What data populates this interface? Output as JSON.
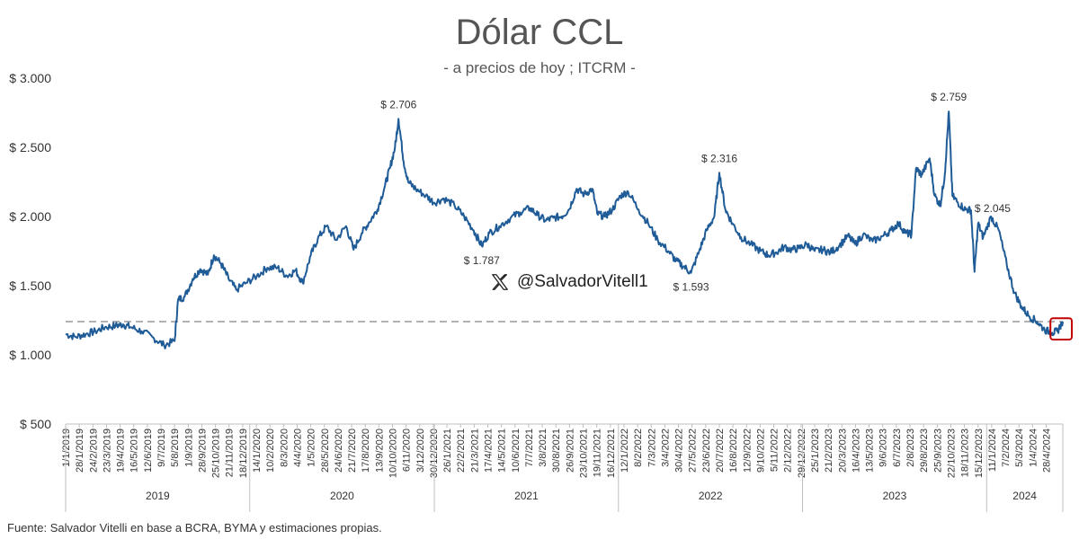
{
  "title": "Dólar CCL",
  "subtitle": "- a precios de hoy ; ITCRM -",
  "source": "Fuente: Salvador Vitelli en base a BCRA, BYMA y estimaciones propias.",
  "watermark": "@SalvadorVitell1",
  "colors": {
    "line": "#1f5b96",
    "reference": "#999999",
    "highlight": "#c00000",
    "grid": "#d0d0d0"
  },
  "chart_data": {
    "type": "line",
    "title": "Dólar CCL",
    "subtitle": "- a precios de hoy ; ITCRM -",
    "ylim": [
      500,
      3000
    ],
    "yticks": [
      500,
      1000,
      1500,
      2000,
      2500,
      3000
    ],
    "ytick_labels": [
      "$ 500",
      "$ 1.000",
      "$ 1.500",
      "$ 2.000",
      "$ 2.500",
      "$ 3.000"
    ],
    "reference_line": 1240,
    "x_start": "2019-01-01",
    "x_end": "2024-05-31",
    "years": [
      {
        "label": "2019",
        "start": "2019-01-01",
        "end": "2019-12-31"
      },
      {
        "label": "2020",
        "start": "2020-01-01",
        "end": "2020-12-31"
      },
      {
        "label": "2021",
        "start": "2021-01-01",
        "end": "2021-12-31"
      },
      {
        "label": "2022",
        "start": "2022-01-01",
        "end": "2022-12-31"
      },
      {
        "label": "2023",
        "start": "2023-01-01",
        "end": "2023-12-31"
      },
      {
        "label": "2024",
        "start": "2024-01-01",
        "end": "2024-05-31"
      }
    ],
    "x_tick_labels": [
      "1/1/2019",
      "28/1/2019",
      "24/2/2019",
      "23/3/2019",
      "19/4/2019",
      "16/5/2019",
      "12/6/2019",
      "9/7/2019",
      "5/8/2019",
      "1/9/2019",
      "28/9/2019",
      "25/10/2019",
      "21/11/2019",
      "18/12/2019",
      "14/1/2020",
      "10/2/2020",
      "8/3/2020",
      "4/4/2020",
      "1/5/2020",
      "28/5/2020",
      "24/6/2020",
      "21/7/2020",
      "17/8/2020",
      "13/9/2020",
      "10/10/2020",
      "6/11/2020",
      "3/12/2020",
      "30/12/2020",
      "26/1/2021",
      "22/2/2021",
      "21/3/2021",
      "17/4/2021",
      "14/5/2021",
      "10/6/2021",
      "7/7/2021",
      "3/8/2021",
      "30/8/2021",
      "26/9/2021",
      "23/10/2021",
      "19/11/2021",
      "16/12/2021",
      "12/1/2022",
      "8/2/2022",
      "7/3/2022",
      "3/4/2022",
      "30/4/2022",
      "27/5/2022",
      "23/6/2022",
      "20/7/2022",
      "16/8/2022",
      "12/9/2022",
      "9/10/2022",
      "5/11/2022",
      "2/12/2022",
      "29/12/2022",
      "25/1/2023",
      "21/2/2023",
      "20/3/2023",
      "16/4/2023",
      "13/5/2023",
      "9/6/2023",
      "6/7/2023",
      "2/8/2023",
      "29/8/2023",
      "25/9/2023",
      "22/10/2023",
      "18/11/2023",
      "15/12/2023",
      "11/1/2024",
      "7/2/2024",
      "5/3/2024",
      "1/4/2024",
      "28/4/2024"
    ],
    "series": [
      {
        "name": "Dólar CCL",
        "points": [
          [
            "2019-01-01",
            1150
          ],
          [
            "2019-01-20",
            1130
          ],
          [
            "2019-02-10",
            1150
          ],
          [
            "2019-03-01",
            1170
          ],
          [
            "2019-03-20",
            1200
          ],
          [
            "2019-04-10",
            1210
          ],
          [
            "2019-04-25",
            1220
          ],
          [
            "2019-05-10",
            1200
          ],
          [
            "2019-06-01",
            1170
          ],
          [
            "2019-06-25",
            1120
          ],
          [
            "2019-07-15",
            1070
          ],
          [
            "2019-08-05",
            1100
          ],
          [
            "2019-08-12",
            1400
          ],
          [
            "2019-08-25",
            1420
          ],
          [
            "2019-09-10",
            1550
          ],
          [
            "2019-09-25",
            1620
          ],
          [
            "2019-10-10",
            1580
          ],
          [
            "2019-10-22",
            1720
          ],
          [
            "2019-11-05",
            1660
          ],
          [
            "2019-11-20",
            1550
          ],
          [
            "2019-12-05",
            1470
          ],
          [
            "2019-12-25",
            1520
          ],
          [
            "2020-01-15",
            1570
          ],
          [
            "2020-02-05",
            1630
          ],
          [
            "2020-02-25",
            1630
          ],
          [
            "2020-03-15",
            1570
          ],
          [
            "2020-04-01",
            1610
          ],
          [
            "2020-04-15",
            1520
          ],
          [
            "2020-05-01",
            1720
          ],
          [
            "2020-05-15",
            1840
          ],
          [
            "2020-06-01",
            1930
          ],
          [
            "2020-06-20",
            1830
          ],
          [
            "2020-07-10",
            1930
          ],
          [
            "2020-07-25",
            1760
          ],
          [
            "2020-08-10",
            1880
          ],
          [
            "2020-08-25",
            1960
          ],
          [
            "2020-09-10",
            2050
          ],
          [
            "2020-09-25",
            2220
          ],
          [
            "2020-10-05",
            2350
          ],
          [
            "2020-10-15",
            2500
          ],
          [
            "2020-10-22",
            2706
          ],
          [
            "2020-11-01",
            2400
          ],
          [
            "2020-11-10",
            2250
          ],
          [
            "2020-11-25",
            2200
          ],
          [
            "2020-12-15",
            2150
          ],
          [
            "2021-01-01",
            2100
          ],
          [
            "2021-01-20",
            2130
          ],
          [
            "2021-02-10",
            2080
          ],
          [
            "2021-03-01",
            2000
          ],
          [
            "2021-03-20",
            1900
          ],
          [
            "2021-04-05",
            1787
          ],
          [
            "2021-04-20",
            1880
          ],
          [
            "2021-05-10",
            1930
          ],
          [
            "2021-06-01",
            1990
          ],
          [
            "2021-06-20",
            2030
          ],
          [
            "2021-07-10",
            2060
          ],
          [
            "2021-07-25",
            2010
          ],
          [
            "2021-08-10",
            1970
          ],
          [
            "2021-08-25",
            1990
          ],
          [
            "2021-09-10",
            2000
          ],
          [
            "2021-09-25",
            2050
          ],
          [
            "2021-10-10",
            2200
          ],
          [
            "2021-10-25",
            2160
          ],
          [
            "2021-11-10",
            2200
          ],
          [
            "2021-11-20",
            2020
          ],
          [
            "2021-12-05",
            2000
          ],
          [
            "2021-12-20",
            2050
          ],
          [
            "2022-01-05",
            2150
          ],
          [
            "2022-01-20",
            2180
          ],
          [
            "2022-02-10",
            2050
          ],
          [
            "2022-03-01",
            1950
          ],
          [
            "2022-03-20",
            1830
          ],
          [
            "2022-04-10",
            1750
          ],
          [
            "2022-04-25",
            1680
          ],
          [
            "2022-05-10",
            1640
          ],
          [
            "2022-05-25",
            1593
          ],
          [
            "2022-06-10",
            1750
          ],
          [
            "2022-06-25",
            1900
          ],
          [
            "2022-07-10",
            2000
          ],
          [
            "2022-07-20",
            2316
          ],
          [
            "2022-08-01",
            2050
          ],
          [
            "2022-08-15",
            1950
          ],
          [
            "2022-09-01",
            1850
          ],
          [
            "2022-09-20",
            1800
          ],
          [
            "2022-10-10",
            1750
          ],
          [
            "2022-10-25",
            1720
          ],
          [
            "2022-11-10",
            1740
          ],
          [
            "2022-11-25",
            1780
          ],
          [
            "2022-12-10",
            1760
          ],
          [
            "2022-12-25",
            1770
          ],
          [
            "2023-01-10",
            1800
          ],
          [
            "2023-01-25",
            1750
          ],
          [
            "2023-02-10",
            1760
          ],
          [
            "2023-02-25",
            1740
          ],
          [
            "2023-03-15",
            1790
          ],
          [
            "2023-04-01",
            1860
          ],
          [
            "2023-04-15",
            1800
          ],
          [
            "2023-05-01",
            1870
          ],
          [
            "2023-05-20",
            1820
          ],
          [
            "2023-06-10",
            1860
          ],
          [
            "2023-06-25",
            1900
          ],
          [
            "2023-07-10",
            1950
          ],
          [
            "2023-07-25",
            1880
          ],
          [
            "2023-08-05",
            1870
          ],
          [
            "2023-08-14",
            2350
          ],
          [
            "2023-08-25",
            2300
          ],
          [
            "2023-09-10",
            2420
          ],
          [
            "2023-09-20",
            2150
          ],
          [
            "2023-10-01",
            2080
          ],
          [
            "2023-10-10",
            2300
          ],
          [
            "2023-10-18",
            2759
          ],
          [
            "2023-10-25",
            2150
          ],
          [
            "2023-11-05",
            2100
          ],
          [
            "2023-11-20",
            2050
          ],
          [
            "2023-12-01",
            2045
          ],
          [
            "2023-12-08",
            1600
          ],
          [
            "2023-12-15",
            1950
          ],
          [
            "2023-12-25",
            1850
          ],
          [
            "2024-01-10",
            2000
          ],
          [
            "2024-01-25",
            1900
          ],
          [
            "2024-02-10",
            1650
          ],
          [
            "2024-02-25",
            1450
          ],
          [
            "2024-03-10",
            1350
          ],
          [
            "2024-03-25",
            1280
          ],
          [
            "2024-04-10",
            1240
          ],
          [
            "2024-04-25",
            1180
          ],
          [
            "2024-05-10",
            1160
          ],
          [
            "2024-05-20",
            1170
          ],
          [
            "2024-05-31",
            1240
          ]
        ]
      }
    ],
    "annotations": [
      {
        "date": "2020-10-22",
        "value": 2706,
        "label": "$ 2.706",
        "position": "above"
      },
      {
        "date": "2021-04-05",
        "value": 1787,
        "label": "$ 1.787",
        "position": "below"
      },
      {
        "date": "2022-05-25",
        "value": 1593,
        "label": "$ 1.593",
        "position": "below"
      },
      {
        "date": "2022-07-20",
        "value": 2316,
        "label": "$ 2.316",
        "position": "above"
      },
      {
        "date": "2023-10-18",
        "value": 2759,
        "label": "$ 2.759",
        "position": "above"
      },
      {
        "date": "2023-12-01",
        "value": 2045,
        "label": "$ 2.045",
        "position": "above-right"
      }
    ],
    "highlight": {
      "date_start": "2024-05-10",
      "date_end": "2024-05-31"
    }
  }
}
